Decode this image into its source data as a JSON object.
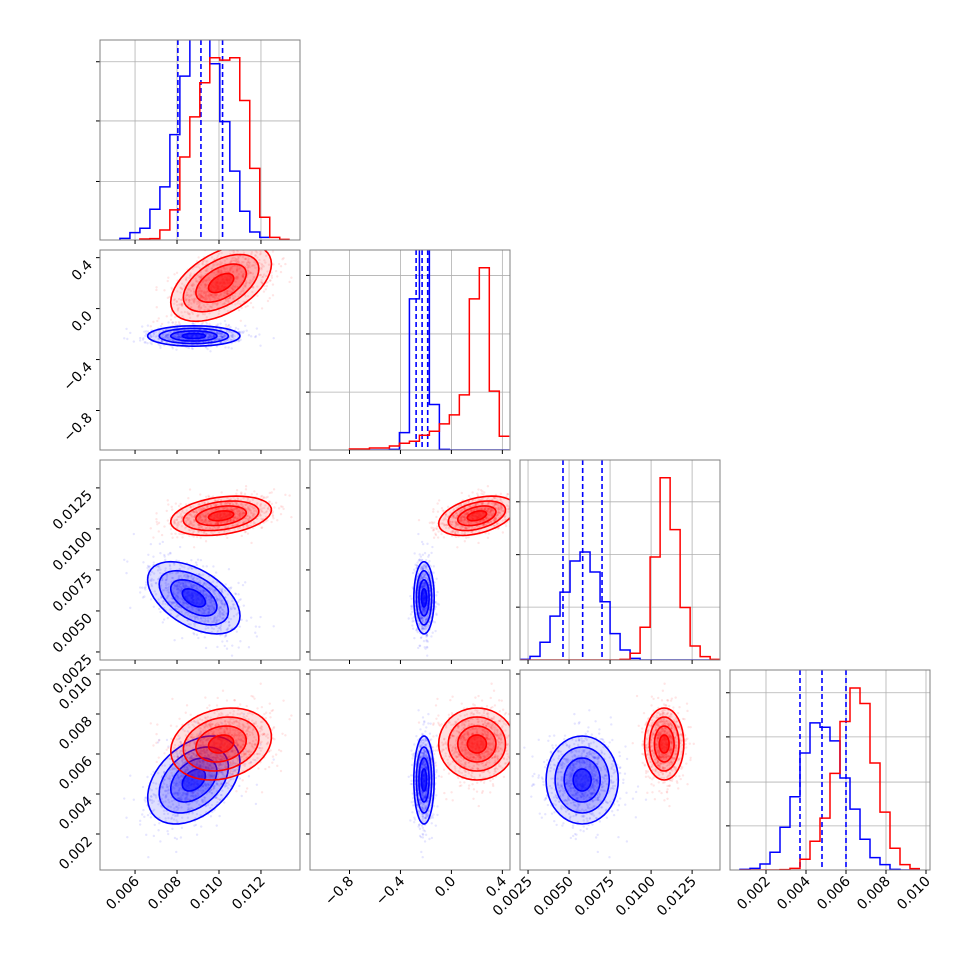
{
  "chart_data": {
    "type": "corner",
    "title": "",
    "hist_ylim": [
      0,
      598
    ],
    "parameters": [
      {
        "range": [
          0.00433,
          0.01386
        ],
        "ticks": [
          0.006,
          0.008,
          0.01,
          0.012
        ],
        "tick_labels": [
          "0.006",
          "0.008",
          "0.010",
          "0.012"
        ]
      },
      {
        "range": [
          -1.11,
          0.46
        ],
        "ticks": [
          -0.8,
          -0.4,
          0.0,
          0.4
        ],
        "tick_labels": [
          "−0.8",
          "−0.4",
          "0.0",
          "0.4"
        ]
      },
      {
        "range": [
          0.00201,
          0.0142
        ],
        "ticks": [
          0.0025,
          0.005,
          0.0075,
          0.01,
          0.0125
        ],
        "tick_labels": [
          "0.0025",
          "0.0050",
          "0.0075",
          "0.0100",
          "0.0125"
        ]
      },
      {
        "range": [
          0.0002,
          0.0102
        ],
        "ticks": [
          0.002,
          0.004,
          0.006,
          0.008,
          0.01
        ],
        "tick_labels": [
          "0.002",
          "0.004",
          "0.006",
          "0.008",
          "0.010"
        ]
      }
    ],
    "hist_yticks": [
      [
        175,
        356,
        533
      ],
      [
        173,
        347,
        522
      ],
      [
        158,
        315,
        473
      ],
      [
        132,
        263,
        398,
        530
      ]
    ],
    "series": [
      {
        "color": "#0000ff",
        "mean": [
          0.0088,
          -0.215,
          0.0058,
          0.0047
        ],
        "sd": [
          0.0011,
          0.04,
          0.0011,
          0.0011
        ],
        "corr": [
          [
            1,
            0,
            -0.5,
            0.4
          ],
          [
            0,
            1,
            0,
            0
          ],
          [
            -0.5,
            0,
            1,
            0
          ],
          [
            0.4,
            0,
            0,
            1
          ]
        ],
        "quantiles": [
          [
            0.00804,
            0.00914,
            0.01017
          ],
          [
            -0.277,
            -0.23,
            -0.186
          ],
          [
            0.00463,
            0.00583,
            0.00701
          ],
          [
            0.0037,
            0.0048,
            0.006
          ]
        ],
        "hist": [
          {
            "start": 0.00528,
            "width": 0.000476,
            "counts": [
              5,
              22,
              35,
              92,
              159,
              315,
              490,
              660,
              680,
              527,
              354,
              206,
              86,
              24,
              8
            ]
          },
          {
            "start": -0.8,
            "width": 0.0784,
            "counts": [
              0,
              0,
              0,
              0,
              2,
              52,
              452,
              700,
              136,
              2,
              0,
              0,
              0,
              0,
              0,
              0
            ]
          },
          {
            "start": 0.00201,
            "width": 0.00061,
            "counts": [
              2,
              11,
              53,
              131,
              203,
              296,
              323,
              263,
              174,
              79,
              30,
              5,
              0,
              0,
              0,
              0,
              0,
              0,
              0,
              0
            ]
          },
          {
            "start": 0.0007,
            "width": 0.0005,
            "counts": [
              2,
              5,
              18,
              53,
              128,
              219,
              350,
              440,
              427,
              386,
              275,
              182,
              92,
              37,
              16,
              2,
              0,
              0
            ]
          }
        ]
      },
      {
        "color": "#ff0000",
        "mean": [
          0.0101,
          0.2,
          0.0108,
          0.0065
        ],
        "sd": [
          0.0012,
          0.15,
          0.0006,
          0.0009
        ],
        "corr": [
          [
            1,
            0.5,
            0.3,
            0.2
          ],
          [
            0.5,
            1,
            0.4,
            0
          ],
          [
            0.3,
            0.4,
            1,
            0
          ],
          [
            0.2,
            0,
            0,
            1
          ]
        ],
        "hist": [
          {
            "start": 0.00623,
            "width": 0.000476,
            "counts": [
              3,
              4,
              30,
              90,
              248,
              368,
              470,
              545,
              538,
              545,
              417,
              214,
              68,
              8,
              2
            ]
          },
          {
            "start": -0.8,
            "width": 0.0784,
            "counts": [
              3,
              3,
              6,
              6,
              12,
              20,
              26,
              44,
              56,
              78,
              105,
              165,
              452,
              545,
              176,
              41
            ]
          },
          {
            "start": 0.00201,
            "width": 0.00061,
            "counts": [
              0,
              0,
              0,
              0,
              0,
              0,
              0,
              0,
              0,
              0,
              2,
              20,
              98,
              308,
              545,
              390,
              157,
              42,
              10,
              2
            ]
          },
          {
            "start": 0.0007,
            "width": 0.0005,
            "counts": [
              0,
              0,
              0,
              0,
              1,
              5,
              32,
              86,
              155,
              289,
              444,
              544,
              498,
              320,
              173,
              65,
              16,
              4
            ]
          }
        ]
      }
    ]
  }
}
